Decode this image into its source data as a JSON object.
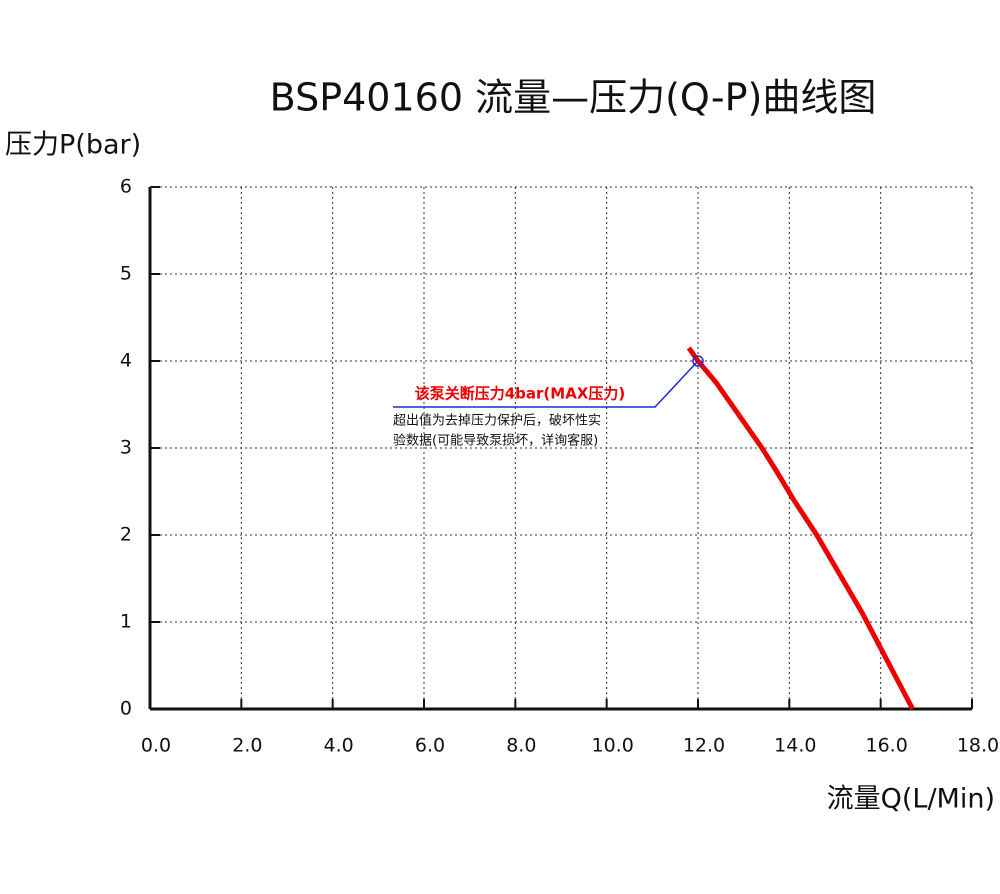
{
  "chart_data": {
    "type": "line",
    "title": "BSP40160 流量—压力(Q-P)曲线图",
    "y_label": "压力P(bar)",
    "x_label": "流量Q(L/Min)",
    "annotation": {
      "title": "该泵关断压力4bar(MAX压力)",
      "lines": [
        "超出值为去掉压力保护后，破坏性实",
        "验数据(可能导致泵损坏，详询客服)"
      ],
      "x": 12.0,
      "y": 4.0
    },
    "series": [
      {
        "name": "Q-P",
        "color": "#ee0000",
        "x": [
          11.8,
          12.0,
          12.4,
          13.4,
          13.7,
          14.1,
          14.6,
          15.1,
          15.6,
          16.1,
          16.7
        ],
        "values": [
          4.15,
          4.0,
          3.75,
          3.0,
          2.75,
          2.4,
          2.0,
          1.55,
          1.1,
          0.6,
          0
        ]
      }
    ],
    "xlim": [
      0,
      18
    ],
    "ylim": [
      0,
      6
    ],
    "xticks": [
      {
        "value": 0,
        "label": "0.0"
      },
      {
        "value": 2,
        "label": "2.0"
      },
      {
        "value": 4,
        "label": "4.0"
      },
      {
        "value": 6,
        "label": "6.0"
      },
      {
        "value": 8,
        "label": "8.0"
      },
      {
        "value": 10,
        "label": "10.0"
      },
      {
        "value": 12,
        "label": "12.0"
      },
      {
        "value": 14,
        "label": "14.0"
      },
      {
        "value": 16,
        "label": "16.0"
      },
      {
        "value": 18,
        "label": "18.0"
      }
    ],
    "yticks": [
      0,
      1,
      2,
      3,
      4,
      5,
      6
    ],
    "grid": true
  }
}
